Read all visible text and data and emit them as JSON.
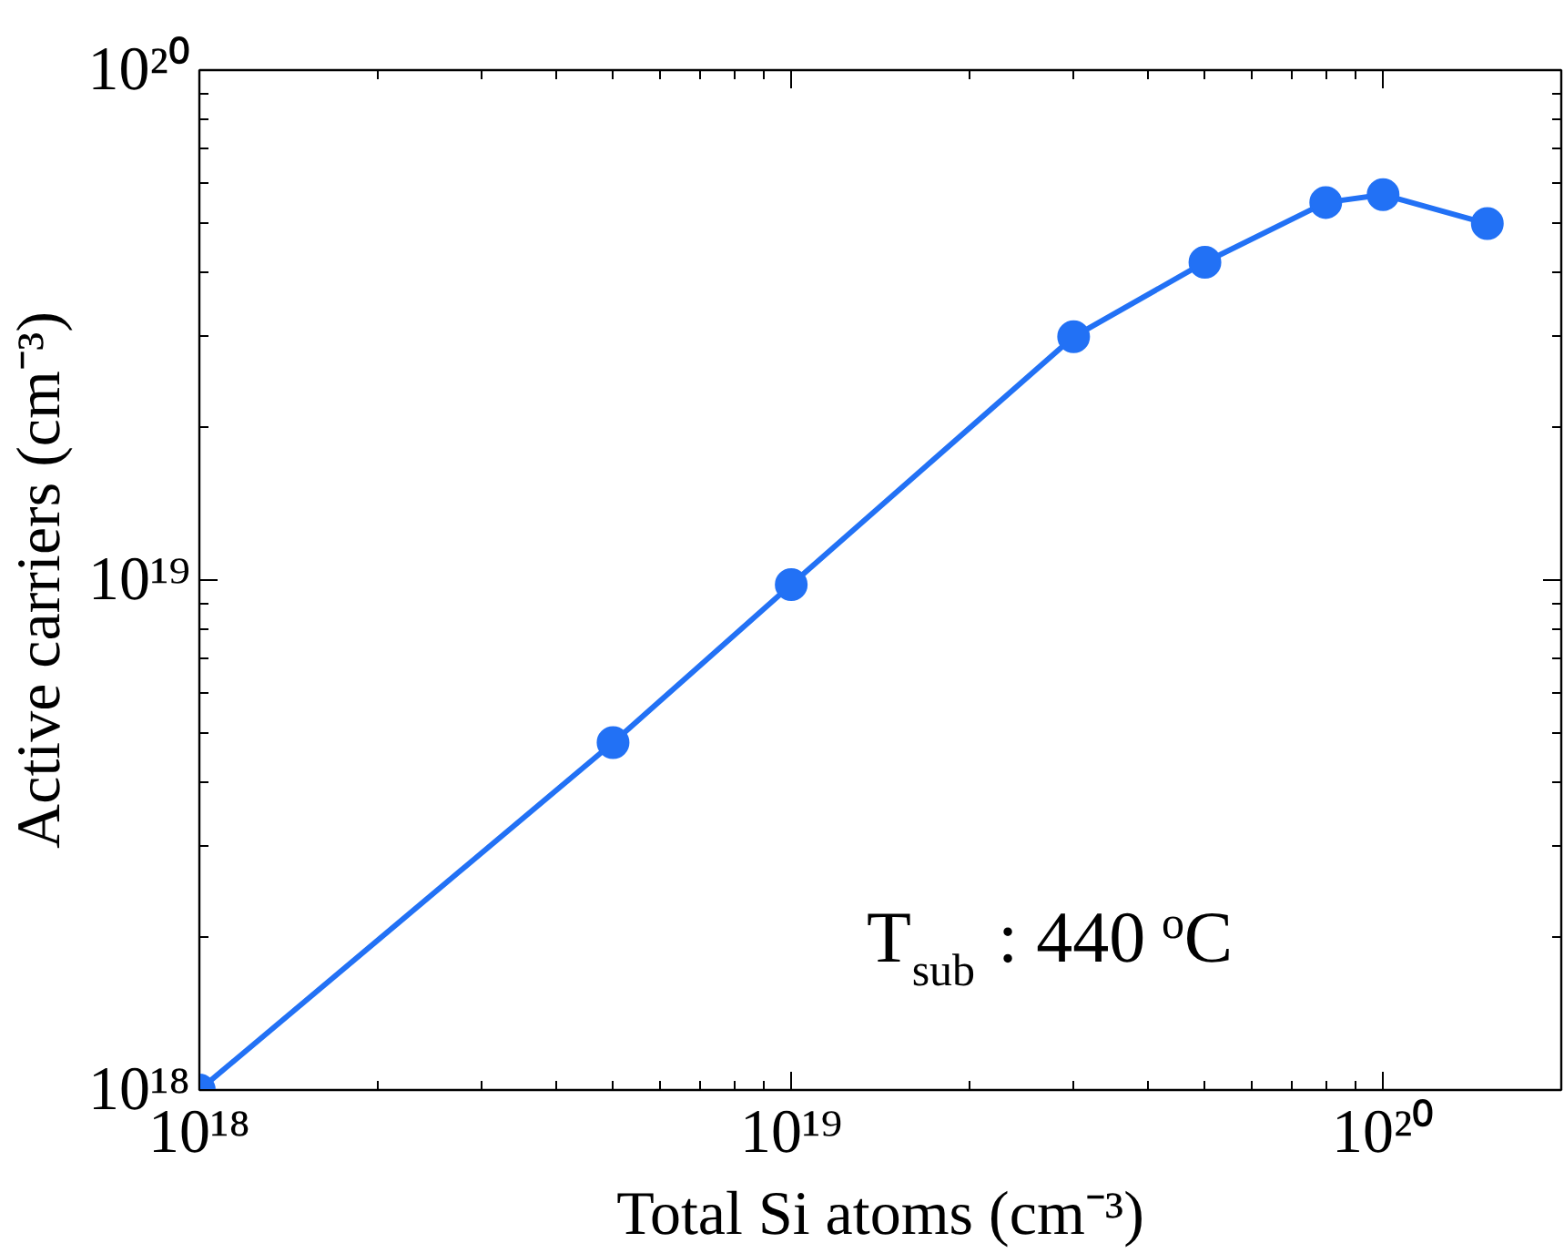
{
  "chart_data": {
    "type": "line",
    "xlabel": "Total Si atoms (cm⁻³)",
    "ylabel": "Active carriers (cm⁻³)",
    "annotations": [
      "T$_{sub}$ : 440 $^{o}$C"
    ],
    "log": "xy",
    "grid": false,
    "marker": "circle",
    "line_style": "solid",
    "xlim": [
      1e+18,
      2e+20
    ],
    "ylim": [
      1e+18,
      1e+20
    ],
    "xticks": [
      {
        "value": 1e+18,
        "label": "10¹⁸"
      },
      {
        "value": 1e+19,
        "label": "10¹⁹"
      },
      {
        "value": 1e+20,
        "label": "10²⁰"
      }
    ],
    "yticks": [
      {
        "value": 1e+18,
        "label": "10¹⁸"
      },
      {
        "value": 1e+19,
        "label": "10¹⁹"
      },
      {
        "value": 1e+20,
        "label": "10²⁰"
      }
    ],
    "x": [
      1e+18,
      5e+18,
      1e+19,
      3e+19,
      5e+19,
      8e+19,
      1e+20,
      1.5e+20
    ],
    "series": [
      {
        "color": "#2271f5",
        "values": [
          1e+18,
          4.8e+18,
          9.8e+18,
          3e+19,
          4.2e+19,
          5.5e+19,
          5.7e+19,
          5e+19
        ]
      }
    ]
  }
}
